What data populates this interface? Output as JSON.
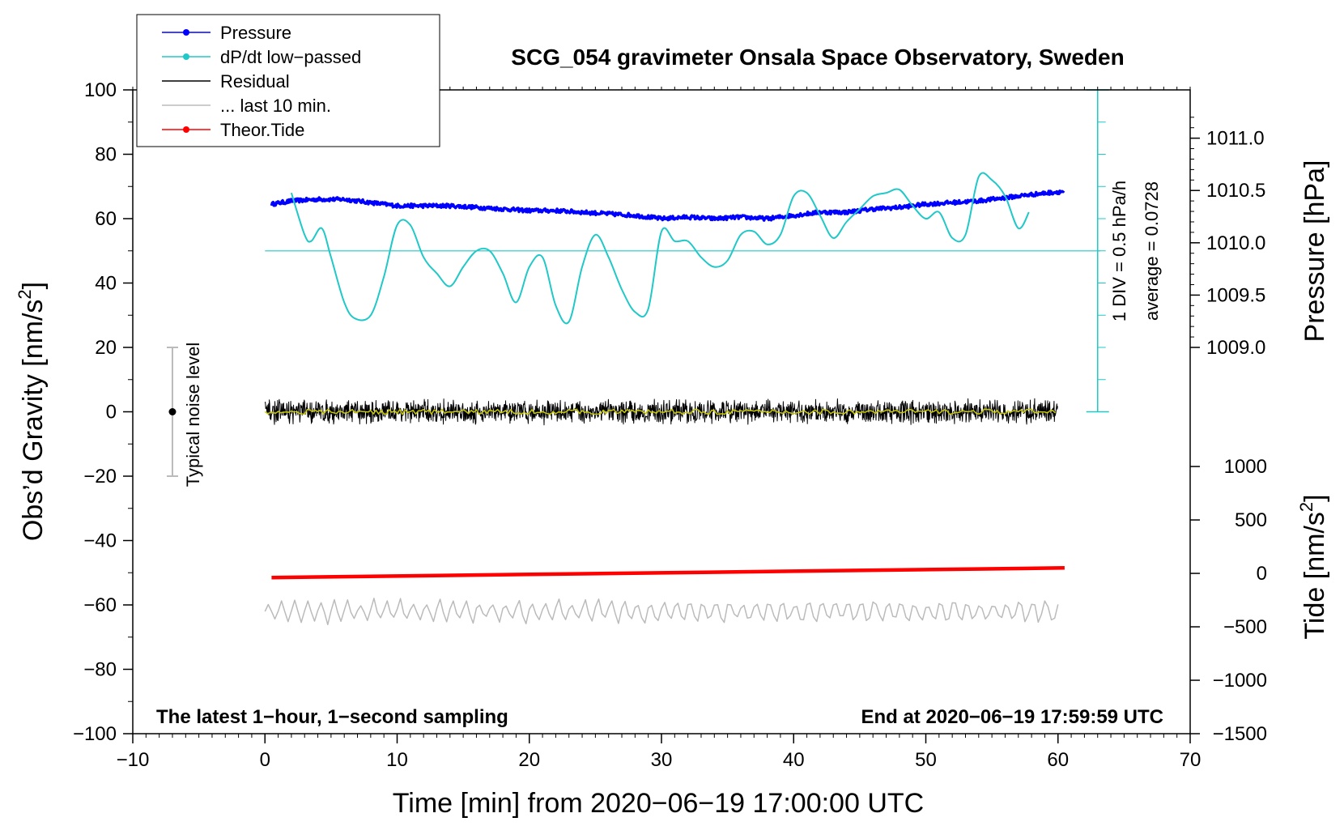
{
  "chart_data": {
    "type": "line",
    "title": "SCG_054 gravimeter Onsala Space Observatory, Sweden",
    "xlabel": "Time [min] from 2020−06−19 17:00:00 UTC",
    "ylabel_left_main": "Obs’d Gravity [nm/s",
    "ylabel_left_sup": "2",
    "ylabel_left_end": "]",
    "ylabel_right_pressure": "Pressure [hPa]",
    "ylabel_right_tide_main": "Tide [nm/s",
    "ylabel_right_tide_sup": "2",
    "ylabel_right_tide_end": "]",
    "xlim": [
      -10,
      70
    ],
    "ylim": [
      -100,
      100
    ],
    "xticks": [
      -10,
      0,
      10,
      20,
      30,
      40,
      50,
      60,
      70
    ],
    "xtick_labels": [
      "−10",
      "0",
      "10",
      "20",
      "30",
      "40",
      "50",
      "60",
      "70"
    ],
    "yticks": [
      -100,
      -80,
      -60,
      -40,
      -20,
      0,
      20,
      40,
      60,
      80,
      100
    ],
    "ytick_labels": [
      "−100",
      "−80",
      "−60",
      "−40",
      "−20",
      "0",
      "20",
      "40",
      "60",
      "80",
      "100"
    ],
    "pressure_axis": {
      "range_hpa": [
        1009.0,
        1011.0
      ],
      "gravity_at_range": [
        20,
        85
      ],
      "ticks": [
        1009.0,
        1009.5,
        1010.0,
        1010.5,
        1011.0
      ],
      "tick_labels": [
        "1009.0",
        "1009.5",
        "1010.0",
        "1010.5",
        "1011.0"
      ]
    },
    "tide_axis": {
      "ticks": [
        1000,
        500,
        0,
        -500,
        -1000,
        -1500
      ],
      "tick_labels": [
        "1000",
        "500",
        "0",
        "−500",
        "−1000",
        "−1500"
      ],
      "gravity_at_range": [
        -100,
        -17
      ]
    },
    "legend": [
      {
        "label": "Pressure",
        "color": "#0000ff",
        "marker": true
      },
      {
        "label": "dP/dt low−passed",
        "color": "#20c8c8",
        "marker": true
      },
      {
        "label": "Residual",
        "color": "#000000",
        "marker": false
      },
      {
        "label": "... last 10 min.",
        "color": "#bbbbbb",
        "marker": false
      },
      {
        "label": "Theor.Tide",
        "color": "#ff0000",
        "marker": true
      }
    ],
    "series": [
      {
        "name": "Pressure",
        "color": "#0000ff",
        "x": [
          0.5,
          2,
          4,
          6,
          8,
          10,
          12,
          14,
          16,
          18,
          20,
          22,
          24,
          26,
          28,
          30,
          32,
          34,
          36,
          38,
          40,
          42,
          44,
          46,
          48,
          50,
          52,
          54,
          56,
          58,
          60.5
        ],
        "y": [
          64.5,
          65.5,
          66,
          66,
          65,
          64,
          64,
          64,
          63.5,
          63,
          62.5,
          62.5,
          62,
          61.5,
          61,
          60,
          60.5,
          60,
          60.5,
          60,
          61,
          62,
          62,
          63,
          63.5,
          64.5,
          65,
          65.5,
          66.5,
          67.5,
          68.5
        ]
      },
      {
        "name": "dP/dt low-passed",
        "color": "#20c8c8",
        "x": [
          2,
          3,
          3.5,
          4.3,
          5,
          6,
          6.8,
          8,
          9,
          10,
          11,
          12,
          13,
          14,
          15,
          16,
          17,
          18,
          19,
          20,
          21,
          22,
          23,
          24,
          25,
          26,
          27,
          28,
          29,
          30,
          31,
          32,
          33,
          34,
          35,
          36,
          37,
          38,
          39,
          40,
          41,
          42,
          43,
          44,
          45,
          46,
          47,
          48,
          49,
          50,
          51,
          52,
          53,
          54,
          55,
          56,
          57,
          57.8
        ],
        "y": [
          68,
          55,
          53,
          57,
          48,
          34,
          29,
          30,
          42,
          58,
          58,
          48,
          43,
          39,
          45,
          50,
          50,
          43,
          34,
          45,
          48,
          33,
          28,
          45,
          55,
          48,
          38,
          31,
          32,
          56,
          53,
          53,
          48,
          45,
          47,
          55,
          56,
          52,
          55,
          67,
          68,
          61,
          54,
          59,
          63,
          67,
          68,
          69,
          64,
          60,
          62,
          54,
          55,
          73,
          72,
          67,
          57,
          62
        ]
      },
      {
        "name": "dP/dt zero line",
        "color": "#20c8c8",
        "x": [
          0,
          63.2
        ],
        "y": [
          50,
          50
        ]
      },
      {
        "name": "Residual",
        "color": "#000000",
        "x_range": [
          0,
          60
        ],
        "y_center": 0,
        "amplitude": 3
      },
      {
        "name": "Residual smoothed",
        "color": "#c8c800",
        "x_range": [
          0,
          60
        ],
        "y_center": 0,
        "amplitude": 0.8
      },
      {
        "name": "... last 10 min.",
        "color": "#bbbbbb",
        "x_range": [
          0,
          60
        ],
        "y_center": -62,
        "amplitude": 3
      },
      {
        "name": "Theor.Tide",
        "color": "#ff0000",
        "x": [
          0.5,
          60.5
        ],
        "y": [
          -51.5,
          -48.5
        ]
      }
    ],
    "noise_bar": {
      "x": -7,
      "y": [
        -20,
        20
      ],
      "label": "Typical noise level"
    },
    "scale_annotations": {
      "div_label": "1 DIV = 0.5 hPa/h",
      "average_label": "average = 0.0728",
      "x": 63,
      "y_range": [
        0,
        100
      ]
    },
    "footer_left": "The latest 1−hour, 1−second sampling",
    "footer_right": "End at 2020−06−19 17:59:59 UTC"
  }
}
